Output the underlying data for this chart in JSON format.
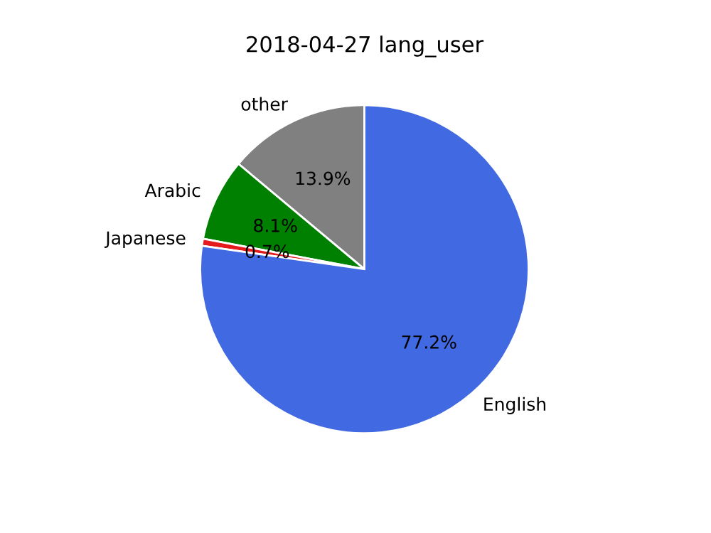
{
  "chart_data": {
    "type": "pie",
    "title": "2018-04-27 lang_user",
    "categories": [
      "other",
      "Arabic",
      "Japanese",
      "English"
    ],
    "values": [
      13.9,
      8.1,
      0.7,
      77.2
    ],
    "value_labels": [
      "13.9%",
      "8.1%",
      "0.7%",
      "77.2%"
    ],
    "colors": [
      "#808080",
      "#008000",
      "#e41a1c",
      "#4169e1"
    ],
    "legend": false
  }
}
